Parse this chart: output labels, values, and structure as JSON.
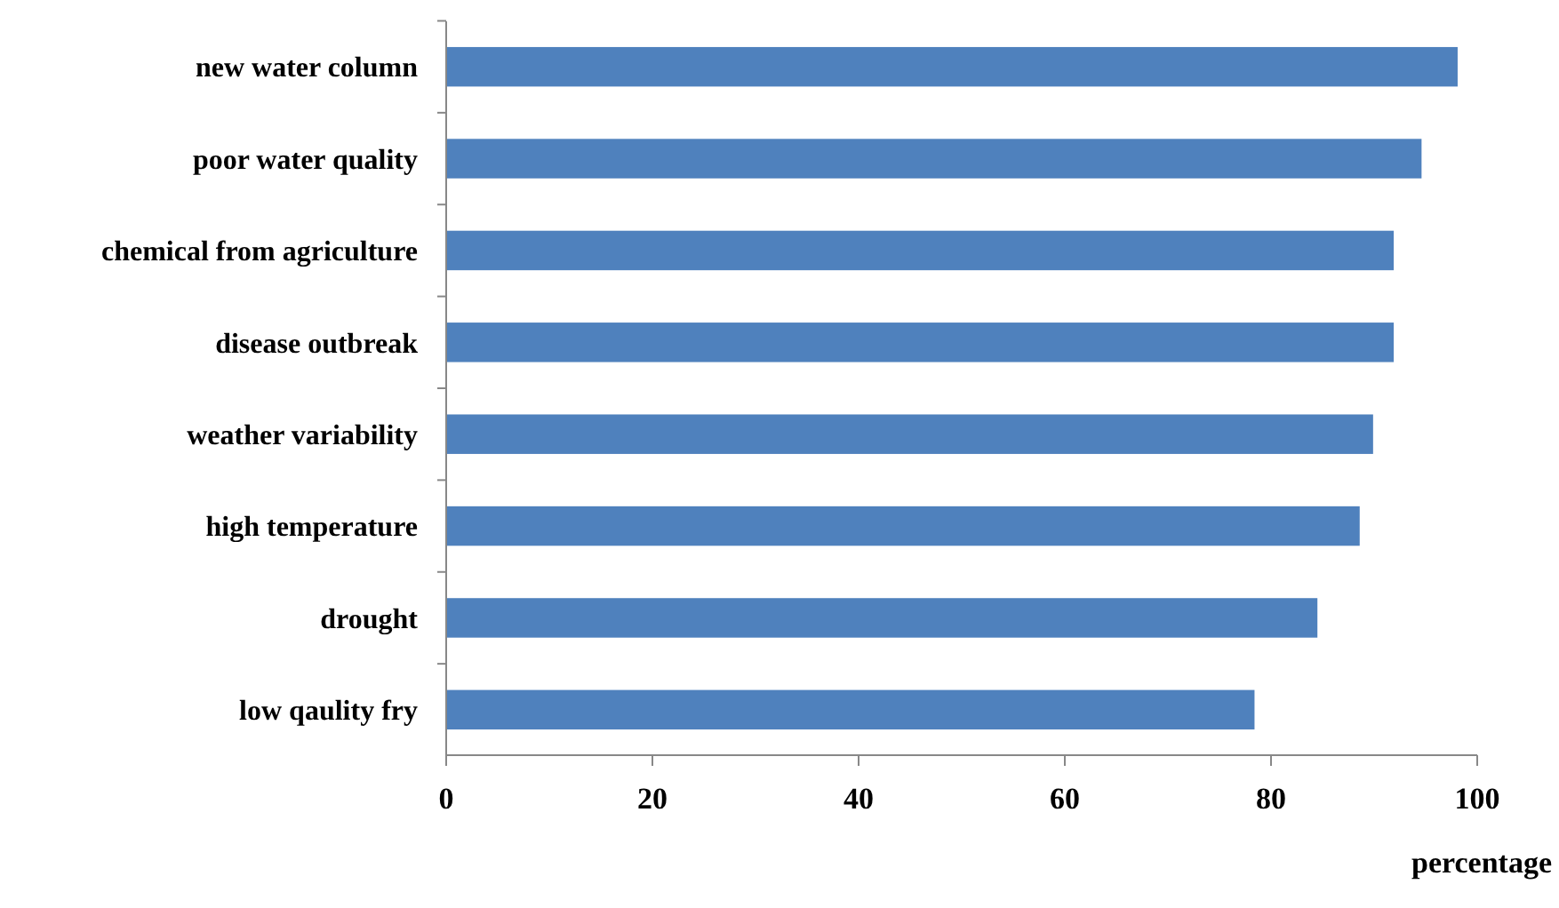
{
  "chart_data": {
    "type": "bar",
    "orientation": "horizontal",
    "xlabel": "percentage",
    "categories": [
      "new water column",
      "poor water quality",
      "chemical from agriculture",
      "disease outbreak",
      "weather variability",
      "high temperature",
      "drought",
      "low qaulity fry"
    ],
    "values": [
      98.1,
      94.6,
      91.9,
      91.9,
      89.9,
      88.6,
      84.5,
      78.4
    ],
    "color": "#4f81bd",
    "xlim": [
      0,
      100
    ],
    "xticks": [
      0,
      20,
      40,
      60,
      80,
      100
    ],
    "grid": false
  }
}
